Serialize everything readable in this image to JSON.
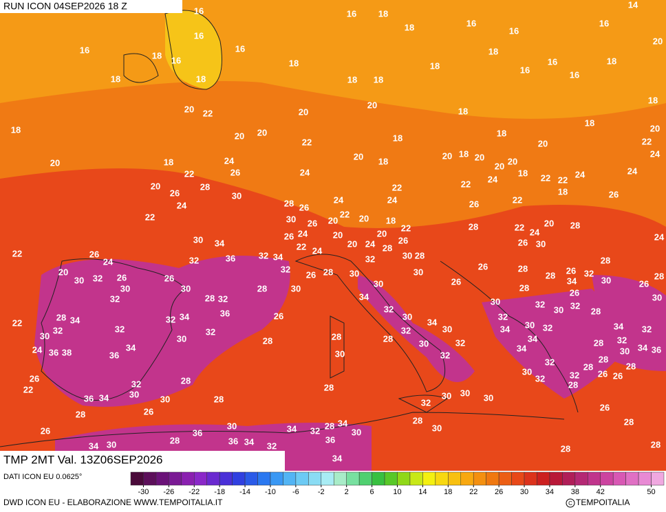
{
  "header": {
    "run": "RUN ICON 04SEP2026 18 Z",
    "field": "TMP 2MT Val. 13Z06SEP2026"
  },
  "map": {
    "labels": [
      16,
      16,
      18,
      18,
      16,
      16,
      16,
      14,
      16,
      16,
      16,
      18,
      16,
      18,
      18,
      16,
      16,
      16,
      18,
      20,
      18,
      18,
      18,
      18,
      18,
      20,
      22,
      20,
      20,
      18,
      18,
      18,
      20,
      20,
      22,
      18,
      18,
      18,
      20,
      22,
      20,
      18,
      22,
      24,
      26,
      20,
      18,
      20,
      18,
      20,
      20,
      20,
      20,
      24,
      20,
      26,
      28,
      24,
      22,
      22,
      24,
      18,
      22,
      22,
      24,
      24,
      18,
      30,
      24,
      28,
      26,
      24,
      24,
      26,
      22,
      26,
      22,
      30,
      26,
      20,
      22,
      20,
      18,
      22,
      28,
      22,
      24,
      20,
      28,
      24,
      30,
      34,
      26,
      24,
      20,
      20,
      26,
      20,
      24,
      26,
      30,
      22,
      26,
      24,
      32,
      36,
      32,
      34,
      22,
      24,
      28,
      32,
      30,
      28,
      28,
      20,
      30,
      32,
      26,
      26,
      32,
      26,
      28,
      30,
      30,
      26,
      28,
      28,
      26,
      32,
      34,
      30,
      28,
      30,
      32,
      30,
      28,
      30,
      30,
      26,
      28,
      26,
      26,
      30,
      28,
      32,
      34,
      32,
      30,
      32,
      30,
      32,
      28,
      22,
      28,
      34,
      32,
      34,
      36,
      26,
      30,
      34,
      32,
      30,
      32,
      32,
      34,
      30,
      32,
      28,
      28,
      28,
      32,
      30,
      34,
      30,
      32,
      28,
      34,
      32,
      32,
      24,
      36,
      38,
      36,
      30,
      30,
      32,
      34,
      34,
      30,
      34,
      36,
      32,
      32,
      28,
      26,
      32,
      28,
      30,
      32,
      32,
      28,
      26,
      26,
      28,
      22,
      30,
      36,
      34,
      30,
      28,
      28,
      30,
      30,
      30,
      32,
      28,
      28,
      26,
      26,
      26,
      28,
      30,
      28,
      30,
      36,
      34,
      32,
      28,
      34,
      30,
      34,
      30,
      28,
      36,
      34,
      32,
      36,
      28,
      28,
      34
    ]
  },
  "colorbar": {
    "lim": [
      -32,
      52
    ],
    "ticks": [
      -30,
      -26,
      -22,
      -18,
      -14,
      -10,
      -6,
      -2,
      2,
      6,
      10,
      14,
      18,
      22,
      26,
      30,
      34,
      38,
      42,
      50
    ],
    "colors": [
      "#4a0a3a",
      "#5c0f5a",
      "#6a1278",
      "#7a1a94",
      "#8a20b0",
      "#8a28c8",
      "#6a2ad0",
      "#4a30d8",
      "#3040e0",
      "#2a5ae8",
      "#2a78f0",
      "#3a98f4",
      "#52b4f4",
      "#6ccaf4",
      "#8adcf4",
      "#a8ecf4",
      "#a8ecc8",
      "#78e0a0",
      "#50d070",
      "#38c040",
      "#58c828",
      "#90d818",
      "#c8e818",
      "#f4f010",
      "#f8d810",
      "#f8c010",
      "#f8a810",
      "#f49010",
      "#f07810",
      "#ec5e14",
      "#e84818",
      "#dc321c",
      "#cc2020",
      "#b81838",
      "#b01e58",
      "#b42874",
      "#c0348c",
      "#cc44a0",
      "#d858b4",
      "#e070c4",
      "#e88ad4",
      "#f0a8e0"
    ]
  },
  "footer": {
    "source": "DATI ICON EU 0.0625°",
    "credit": "DWD ICON EU - ELABORAZIONE WWW.TEMPOITALIA.IT",
    "copyright": "TEMPOITALIA"
  }
}
